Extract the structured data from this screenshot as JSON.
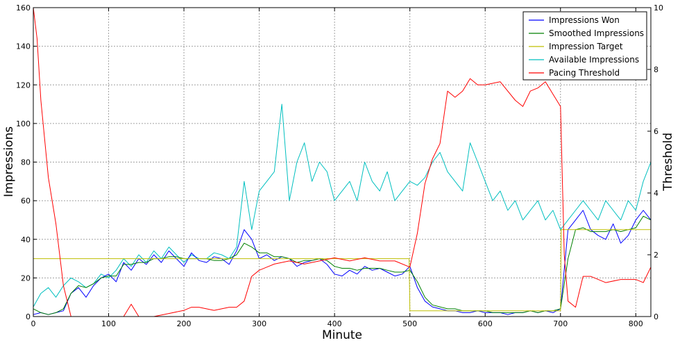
{
  "chart_data": {
    "type": "line",
    "xlabel": "Minute",
    "ylabel": "Impressions",
    "y2label": "Threshold",
    "xlim": [
      0,
      820
    ],
    "ylim": [
      0,
      160
    ],
    "y2lim": [
      0,
      10
    ],
    "xticks": [
      0,
      100,
      200,
      300,
      400,
      500,
      600,
      700,
      800
    ],
    "yticks": [
      0,
      20,
      40,
      60,
      80,
      100,
      120,
      140,
      160
    ],
    "y2ticks": [
      0,
      2,
      4,
      6,
      8,
      10
    ],
    "grid": true,
    "legend_position": "top-right",
    "series": [
      {
        "name": "Impressions Won",
        "color": "#0000ff",
        "axis": "left",
        "x": [
          0,
          10,
          20,
          30,
          40,
          50,
          60,
          70,
          80,
          90,
          100,
          110,
          120,
          130,
          140,
          150,
          160,
          170,
          180,
          190,
          200,
          210,
          220,
          230,
          240,
          250,
          260,
          270,
          280,
          290,
          300,
          310,
          320,
          330,
          340,
          350,
          360,
          370,
          380,
          390,
          400,
          410,
          420,
          430,
          440,
          450,
          460,
          470,
          480,
          490,
          500,
          510,
          520,
          530,
          540,
          550,
          560,
          570,
          580,
          590,
          600,
          610,
          620,
          630,
          640,
          650,
          660,
          670,
          680,
          690,
          700,
          710,
          720,
          730,
          740,
          750,
          760,
          770,
          780,
          790,
          800,
          810,
          820
        ],
        "y": [
          1,
          2,
          1,
          2,
          3,
          12,
          15,
          10,
          16,
          20,
          22,
          18,
          28,
          24,
          30,
          27,
          32,
          28,
          34,
          30,
          26,
          33,
          29,
          28,
          31,
          30,
          27,
          34,
          45,
          40,
          30,
          32,
          29,
          31,
          30,
          26,
          28,
          29,
          30,
          27,
          22,
          21,
          24,
          22,
          26,
          24,
          25,
          23,
          21,
          22,
          26,
          15,
          8,
          5,
          4,
          3,
          3,
          2,
          2,
          3,
          2,
          2,
          2,
          1,
          2,
          2,
          3,
          2,
          3,
          2,
          4,
          45,
          50,
          55,
          45,
          42,
          40,
          48,
          38,
          42,
          50,
          55,
          50
        ]
      },
      {
        "name": "Smoothed Impressions",
        "color": "#008000",
        "axis": "left",
        "x": [
          0,
          10,
          20,
          30,
          40,
          50,
          60,
          70,
          80,
          90,
          100,
          110,
          120,
          130,
          140,
          150,
          160,
          170,
          180,
          190,
          200,
          210,
          220,
          230,
          240,
          250,
          260,
          270,
          280,
          290,
          300,
          310,
          320,
          330,
          340,
          350,
          360,
          370,
          380,
          390,
          400,
          410,
          420,
          430,
          440,
          450,
          460,
          470,
          480,
          490,
          500,
          510,
          520,
          530,
          540,
          550,
          560,
          570,
          580,
          590,
          600,
          610,
          620,
          630,
          640,
          650,
          660,
          670,
          680,
          690,
          700,
          710,
          720,
          730,
          740,
          750,
          760,
          770,
          780,
          790,
          800,
          810,
          820
        ],
        "y": [
          4,
          2,
          1,
          2,
          4,
          12,
          16,
          15,
          17,
          20,
          21,
          21,
          27,
          27,
          28,
          28,
          30,
          30,
          31,
          31,
          30,
          30,
          30,
          30,
          29,
          29,
          30,
          32,
          38,
          36,
          33,
          33,
          31,
          31,
          30,
          28,
          29,
          29,
          30,
          29,
          26,
          25,
          25,
          24,
          25,
          25,
          25,
          24,
          23,
          23,
          24,
          18,
          10,
          6,
          5,
          4,
          4,
          3,
          3,
          3,
          3,
          2,
          2,
          2,
          2,
          2,
          3,
          2,
          3,
          3,
          4,
          30,
          45,
          46,
          44,
          44,
          44,
          45,
          44,
          45,
          46,
          52,
          50
        ]
      },
      {
        "name": "Impression Target",
        "color": "#bfbf00",
        "axis": "left",
        "x": [
          0,
          499,
          500,
          700,
          701,
          820
        ],
        "y": [
          30,
          30,
          3,
          3,
          45,
          45
        ]
      },
      {
        "name": "Available Impressions",
        "color": "#00bfbf",
        "axis": "left",
        "x": [
          0,
          10,
          20,
          30,
          40,
          50,
          60,
          70,
          80,
          90,
          100,
          110,
          120,
          130,
          140,
          150,
          160,
          170,
          180,
          190,
          200,
          210,
          220,
          230,
          240,
          250,
          260,
          270,
          280,
          290,
          300,
          310,
          320,
          330,
          340,
          350,
          360,
          370,
          380,
          390,
          400,
          410,
          420,
          430,
          440,
          450,
          460,
          470,
          480,
          490,
          500,
          510,
          520,
          530,
          540,
          550,
          560,
          570,
          580,
          590,
          600,
          610,
          620,
          630,
          640,
          650,
          660,
          670,
          680,
          690,
          700,
          710,
          720,
          730,
          740,
          750,
          760,
          770,
          780,
          790,
          800,
          810,
          820
        ],
        "y": [
          5,
          12,
          15,
          10,
          16,
          20,
          18,
          15,
          17,
          22,
          20,
          24,
          30,
          26,
          32,
          28,
          34,
          30,
          36,
          32,
          28,
          32,
          30,
          30,
          33,
          32,
          30,
          36,
          70,
          45,
          65,
          70,
          75,
          110,
          60,
          80,
          90,
          70,
          80,
          75,
          60,
          65,
          70,
          60,
          80,
          70,
          65,
          75,
          60,
          65,
          70,
          68,
          72,
          80,
          85,
          75,
          70,
          65,
          90,
          80,
          70,
          60,
          65,
          55,
          60,
          50,
          55,
          60,
          50,
          55,
          45,
          50,
          55,
          60,
          55,
          50,
          60,
          55,
          50,
          60,
          55,
          70,
          80
        ]
      },
      {
        "name": "Pacing Threshold",
        "color": "#ff0000",
        "axis": "right",
        "x": [
          0,
          5,
          10,
          20,
          30,
          40,
          50,
          60,
          80,
          100,
          120,
          130,
          140,
          160,
          180,
          200,
          210,
          220,
          240,
          260,
          270,
          280,
          290,
          300,
          320,
          340,
          360,
          380,
          400,
          420,
          440,
          460,
          480,
          500,
          510,
          520,
          530,
          540,
          550,
          560,
          570,
          580,
          590,
          600,
          620,
          640,
          650,
          660,
          670,
          680,
          690,
          700,
          705,
          710,
          720,
          730,
          740,
          760,
          780,
          800,
          810,
          820
        ],
        "y": [
          10,
          9,
          7,
          4.5,
          3,
          1,
          0,
          0,
          0,
          0,
          0,
          0.4,
          0,
          0,
          0.1,
          0.2,
          0.3,
          0.3,
          0.2,
          0.3,
          0.3,
          0.5,
          1.3,
          1.5,
          1.7,
          1.8,
          1.7,
          1.8,
          1.9,
          1.8,
          1.9,
          1.8,
          1.8,
          1.6,
          2.7,
          4.3,
          5.1,
          5.6,
          7.3,
          7.1,
          7.3,
          7.7,
          7.5,
          7.5,
          7.6,
          7.0,
          6.8,
          7.3,
          7.4,
          7.6,
          7.2,
          6.8,
          2.0,
          0.5,
          0.3,
          1.3,
          1.3,
          1.1,
          1.2,
          1.2,
          1.1,
          1.6
        ]
      }
    ]
  }
}
